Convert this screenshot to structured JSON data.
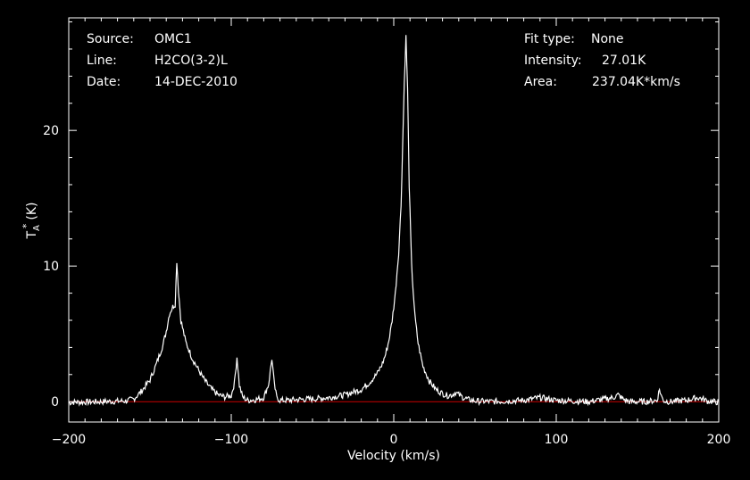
{
  "header": {
    "source_label": "Source:",
    "source_value": "OMC1",
    "line_label": "Line:",
    "line_value": "H2CO(3-2)L",
    "date_label": "Date:",
    "date_value": "14-DEC-2010",
    "fit_label": "Fit type:",
    "fit_value": "None",
    "intensity_label": "Intensity:",
    "intensity_value": "27.01K",
    "area_label": "Area:",
    "area_value": "237.04K*km/s"
  },
  "chart_data": {
    "type": "line",
    "xlabel": "Velocity (km/s)",
    "ylabel": "T",
    "ylabel_sub": "A",
    "ylabel_sup": "*",
    "ylabel_unit": "(K)",
    "xlim": [
      -200,
      200
    ],
    "ylim": [
      -1.5,
      28.3
    ],
    "x_ticks": [
      -200,
      -100,
      0,
      100,
      200
    ],
    "y_ticks": [
      0,
      10,
      20
    ],
    "grid": false,
    "baseline_y": 0,
    "colors": {
      "background": "#000000",
      "line": "#ffffff",
      "baseline": "#cc0000",
      "axes": "#ffffff"
    },
    "series": [
      {
        "x": [
          -200,
          -180,
          -165,
          -160,
          -155,
          -150,
          -146,
          -142,
          -140,
          -138,
          -136,
          -134.5,
          -133.5,
          -132.5,
          -131,
          -128,
          -124,
          -120,
          -116,
          -112,
          -108,
          -104,
          -100,
          -98,
          -96.5,
          -95,
          -93,
          -90,
          -85,
          -80,
          -77,
          -75,
          -73.5,
          -72,
          -70,
          -65,
          -60,
          -50,
          -40,
          -30,
          -20,
          -15,
          -10,
          -7,
          -5,
          -3,
          -1,
          1,
          3,
          4.5,
          5.5,
          6.5,
          7.5,
          8.5,
          9.5,
          11,
          13,
          15,
          18,
          22,
          26,
          30,
          33,
          36,
          38,
          40,
          43,
          46,
          50,
          60,
          80,
          90,
          100,
          120,
          135,
          138,
          141,
          145,
          155,
          162,
          163.5,
          165,
          166.5,
          170,
          180,
          187,
          190,
          193,
          200
        ],
        "y": [
          -0.05,
          0,
          0.05,
          0.2,
          0.8,
          1.6,
          2.8,
          4.2,
          5.2,
          6.5,
          7.0,
          7.2,
          10.4,
          8.2,
          6.0,
          4.4,
          3.2,
          2.3,
          1.5,
          0.9,
          0.5,
          0.35,
          0.45,
          1.4,
          3.3,
          1.2,
          0.35,
          0.1,
          0.15,
          0.3,
          1.3,
          3.2,
          1.3,
          0.3,
          0.1,
          0.1,
          0.15,
          0.2,
          0.3,
          0.5,
          0.9,
          1.4,
          2.1,
          2.8,
          3.5,
          4.5,
          6.0,
          8.0,
          11.0,
          14.5,
          19.0,
          23.5,
          26.9,
          23.0,
          16.0,
          10.0,
          6.3,
          4.3,
          2.6,
          1.5,
          0.9,
          0.6,
          0.45,
          0.5,
          0.7,
          0.5,
          0.3,
          0.15,
          0.05,
          0,
          0.1,
          0.3,
          0.1,
          0,
          0.3,
          0.5,
          0.2,
          0,
          0,
          0.1,
          0.9,
          0.3,
          0.05,
          0,
          0.1,
          0.3,
          0.2,
          0.05,
          -0.05
        ]
      }
    ]
  }
}
